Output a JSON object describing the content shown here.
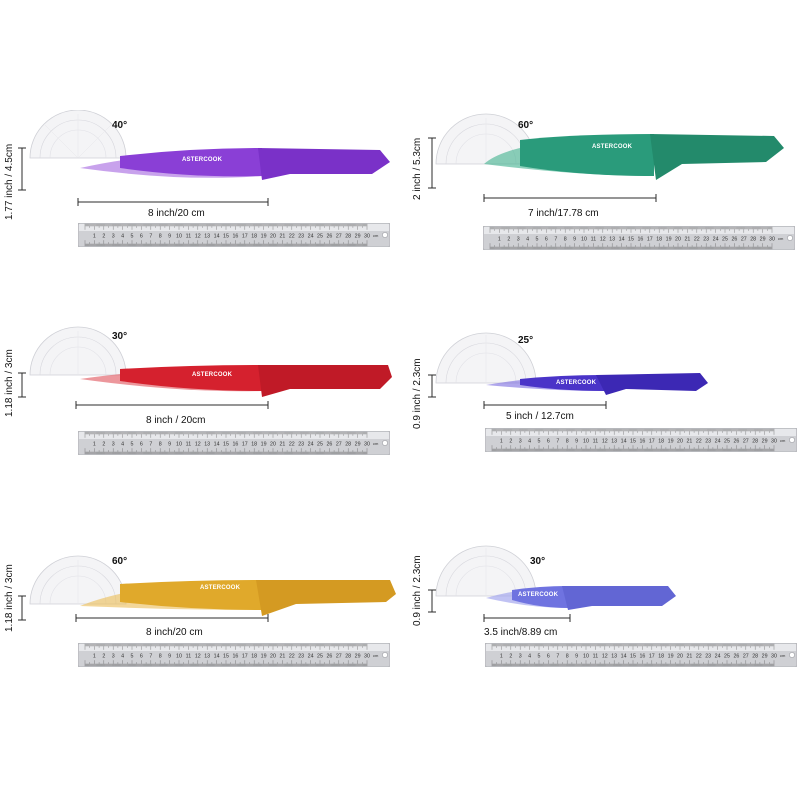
{
  "brand": "ASTERCOOK",
  "ruler_unit": "cm",
  "ruler_numbers": [
    "1",
    "2",
    "3",
    "4",
    "5",
    "6",
    "7",
    "8",
    "9",
    "10",
    "11",
    "12",
    "13",
    "14",
    "15",
    "16",
    "17",
    "18",
    "19",
    "20",
    "21",
    "22",
    "23",
    "24",
    "25",
    "26",
    "27",
    "28",
    "29",
    "30"
  ],
  "knives": [
    {
      "name": "knife-purple",
      "color": "#8a3fd6",
      "handle_color": "#7a31c8",
      "angle": "40°",
      "height": "1.77 inch / 4.5cm",
      "length": "8 inch/20 cm"
    },
    {
      "name": "knife-green",
      "color": "#2a9b7b",
      "handle_color": "#238a6b",
      "angle": "60°",
      "height": "2 inch / 5.3cm",
      "length": "7 inch/17.78 cm"
    },
    {
      "name": "knife-red",
      "color": "#d5212e",
      "handle_color": "#c01a27",
      "angle": "30°",
      "height": "1.18 inch / 3cm",
      "length": "8 inch / 20cm"
    },
    {
      "name": "knife-blue",
      "color": "#4a34c8",
      "handle_color": "#3c28b4",
      "angle": "25°",
      "height": "0.9 inch / 2.3cm",
      "length": "5 inch / 12.7cm"
    },
    {
      "name": "knife-yellow",
      "color": "#e0a92b",
      "handle_color": "#d49a22",
      "angle": "60°",
      "height": "1.18 inch / 3cm",
      "length": "8 inch/20 cm"
    },
    {
      "name": "knife-periwinkle",
      "color": "#6f73e0",
      "handle_color": "#6266d4",
      "angle": "30°",
      "height": "0.9 inch / 2.3cm",
      "length": "3.5 inch/8.89 cm"
    }
  ]
}
